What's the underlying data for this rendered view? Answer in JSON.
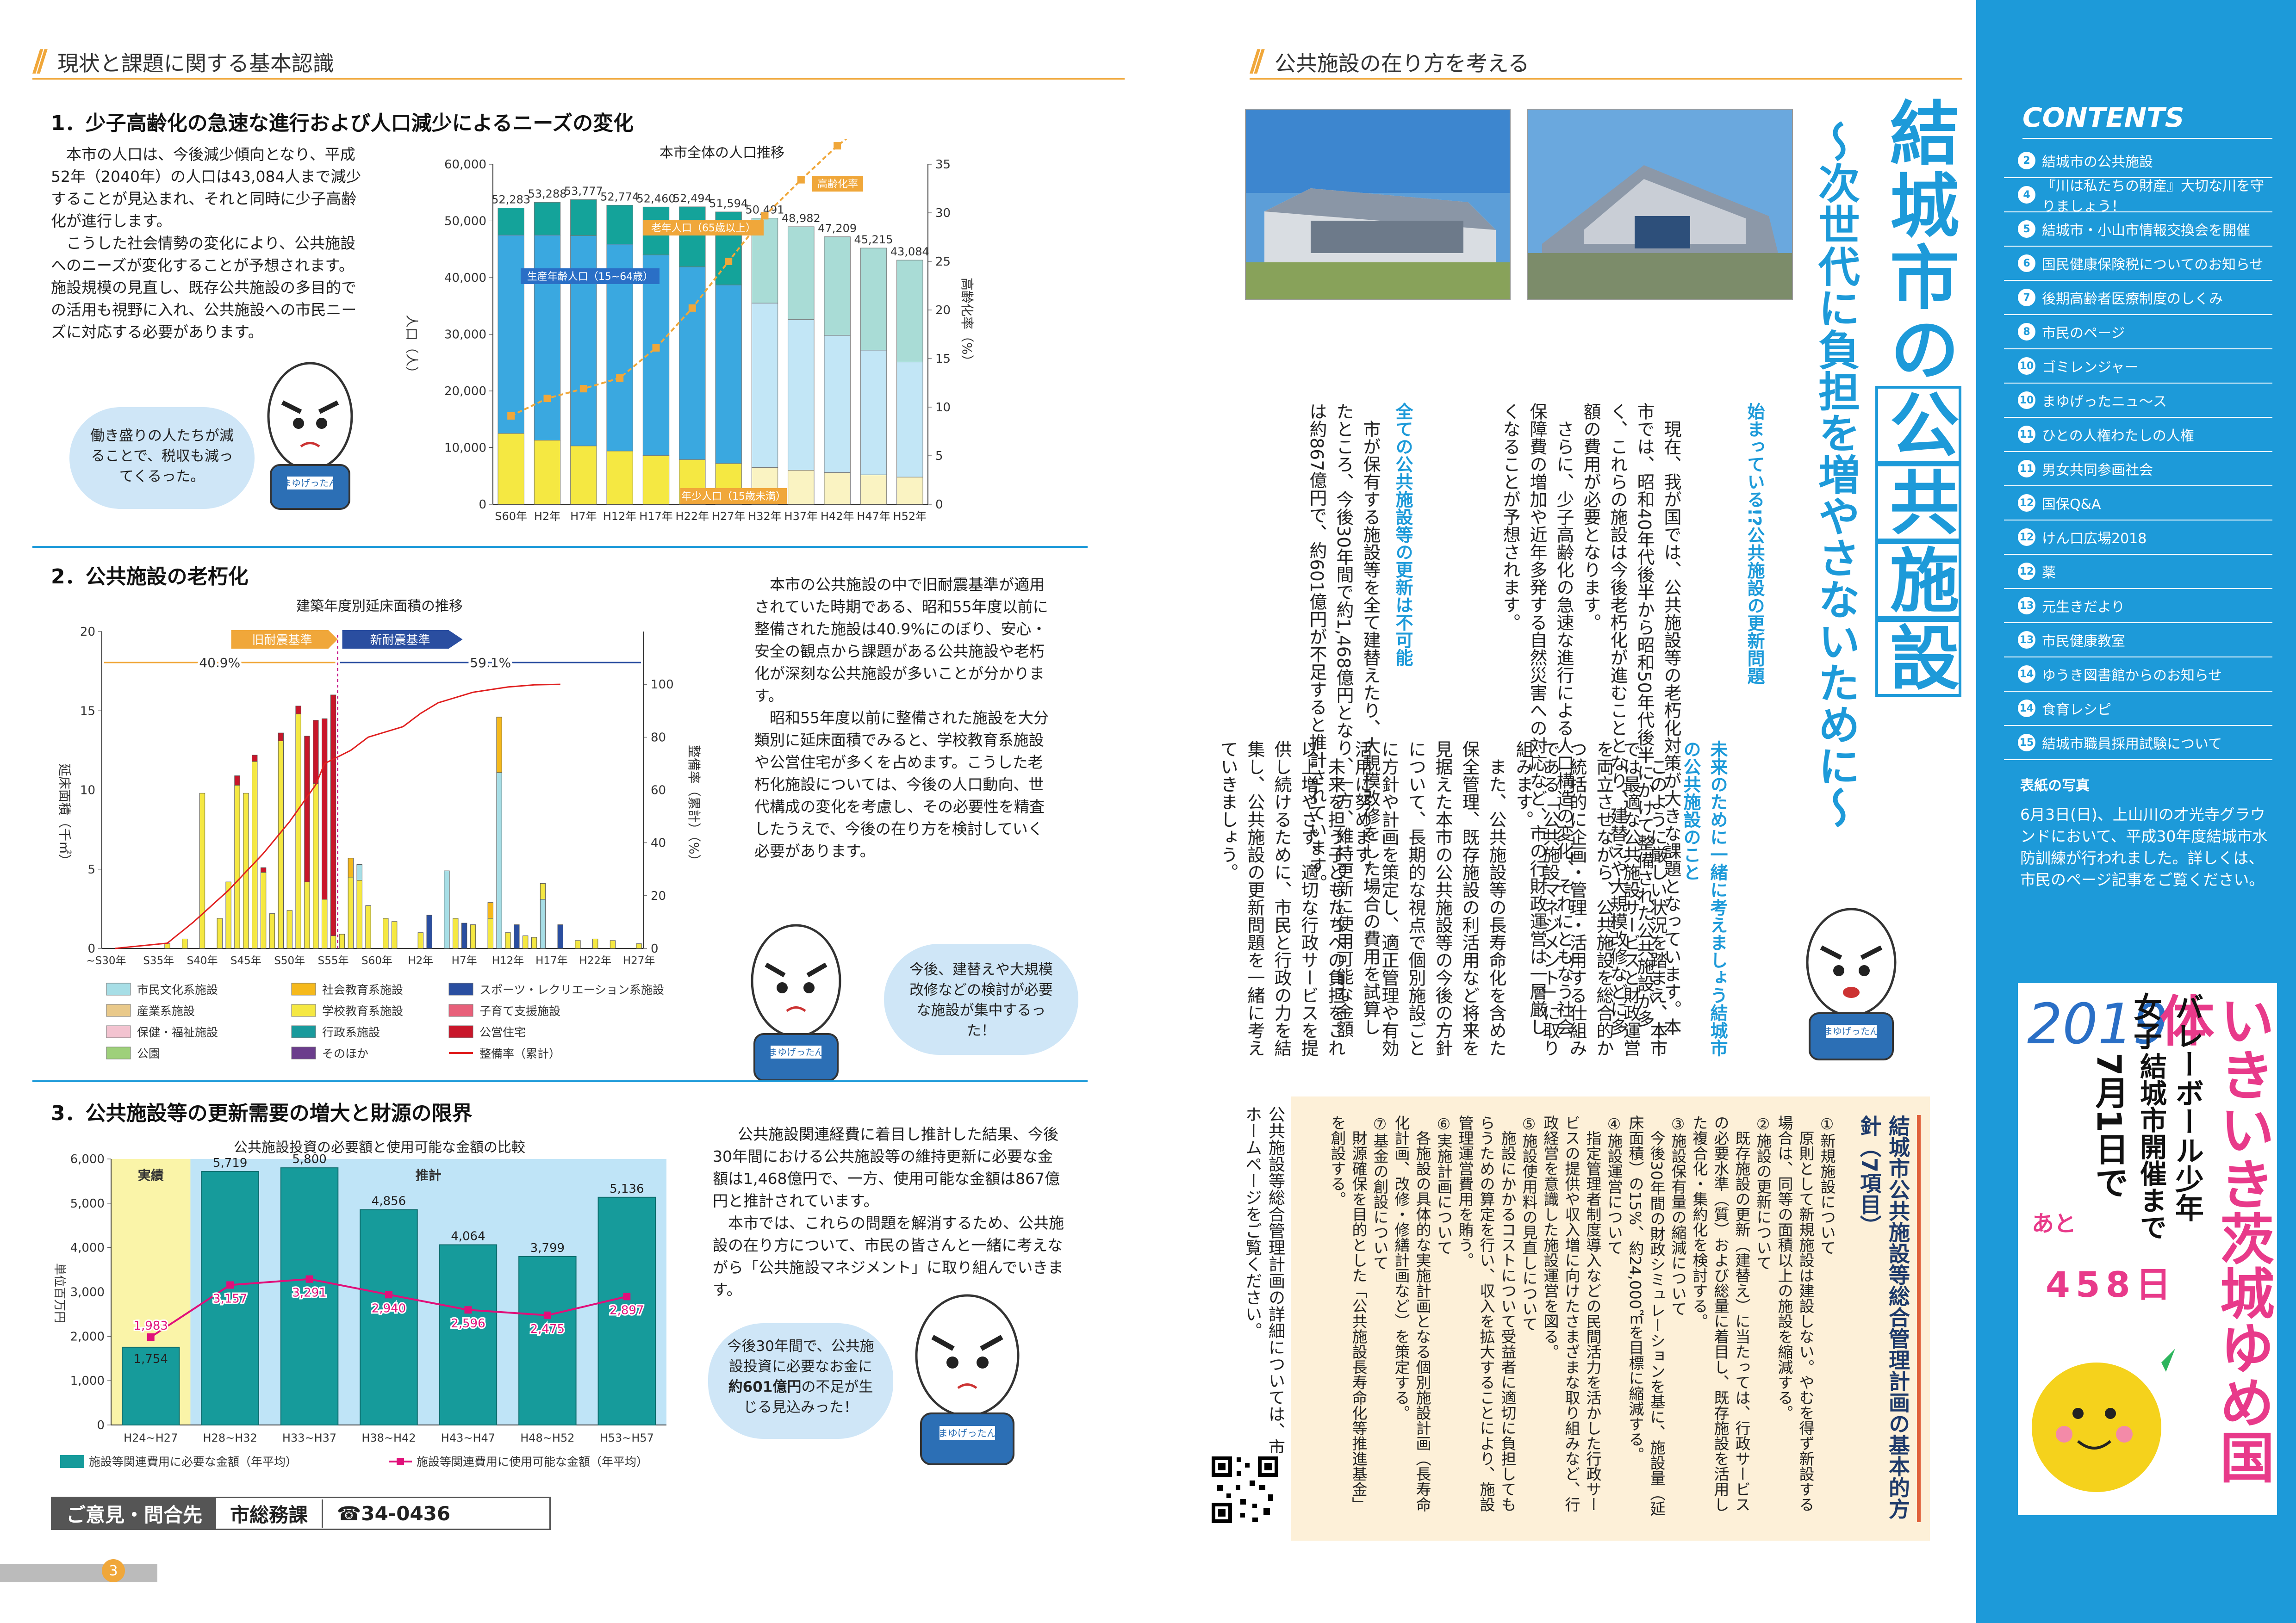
{
  "left_header": {
    "title": "現状と課題に関する基本認識"
  },
  "right_header": {
    "title": "公共施設の在り方を考える"
  },
  "s1": {
    "heading": "1．少子高齢化の急速な進行および人口減少によるニーズの変化",
    "body": "　本市の人口は、今後減少傾向となり、平成52年（2040年）の人口は43,084人まで減少することが見込まれ、それと同時に少子高齢化が進行します。\n　こうした社会情勢の変化により、公共施設へのニーズが変化することが予想されます。施設規模の見直し、既存公共施設の多目的での活用も視野に入れ、公共施設への市民ニーズに対応する必要があります。",
    "bubble": "働き盛りの人たちが減ることで、税収も減ってくるった。"
  },
  "s2": {
    "heading": "2．公共施設の老朽化",
    "body": "　本市の公共施設の中で旧耐震基準が適用されていた時期である、昭和55年度以前に整備された施設は40.9%にのぼり、安心・安全の観点から課題がある公共施設や老朽化が深刻な公共施設が多いことが分かります。\n　昭和55年度以前に整備された施設を大分類別に延床面積でみると、学校教育系施設や公営住宅が多くを占めます。こうした老朽化施設については、今後の人口動向、世代構成の変化を考慮し、その必要性を精査したうえで、今後の在り方を検討していく必要があります。",
    "bubble": "今後、建替えや大規模改修などの検討が必要な施設が集中するった！"
  },
  "s3": {
    "heading": "3．公共施設等の更新需要の増大と財源の限界",
    "body": "　公共施設関連経費に着目し推計した結果、今後30年間における公共施設等の維持更新に必要な金額は1,468億円で、一方、使用可能な金額は867億円と推計されています。\n　本市では、これらの問題を解消するため、公共施設の在り方について、市民の皆さんと一緒に考えながら「公共施設マネジメント」に取り組んでいきます。",
    "bubble_a": "今後30年間で、公共施設投資に必要なお金に",
    "bubble_b": "約601億円",
    "bubble_c": "の不足が生じる見込みった！"
  },
  "contact": {
    "label": "ご意見・問合先",
    "dept": "市総務課",
    "phone": "☎34-0436"
  },
  "page_left": "3",
  "page_right": "2",
  "mascot": {
    "sash": "まゆげったん"
  },
  "chart1": {
    "title": "本市全体の人口推移",
    "chart_data": {
      "type": "bar",
      "categories": [
        "S60年",
        "H2年",
        "H7年",
        "H12年",
        "H17年",
        "H22年",
        "H27年",
        "H32年",
        "H37年",
        "H42年",
        "H47年",
        "H52年"
      ],
      "series": [
        {
          "name": "年少人口（15歳未満）",
          "values": [
            12500,
            11300,
            10300,
            9400,
            8600,
            7900,
            7200,
            6500,
            6000,
            5600,
            5200,
            4800
          ]
        },
        {
          "name": "生産年齢人口（15~64歳）",
          "values": [
            35000,
            36200,
            37100,
            36500,
            35400,
            34000,
            31500,
            29000,
            26600,
            24200,
            22000,
            20300
          ]
        },
        {
          "name": "老年人口（65歳以上）",
          "values": [
            4783,
            5788,
            6377,
            6874,
            8460,
            10594,
            12894,
            14991,
            16382,
            17409,
            18015,
            17984
          ]
        }
      ],
      "totals": [
        "52,283",
        "53,288",
        "53,777",
        "52,774",
        "52,460",
        "52,494",
        "51,594",
        "50,491",
        "48,982",
        "47,209",
        "45,215",
        "43,084"
      ],
      "aging_rate": {
        "name": "高齢化率",
        "values": [
          9.1,
          10.9,
          11.9,
          13.0,
          16.1,
          20.2,
          25.0,
          29.7,
          33.4,
          36.9,
          39.8,
          41.7
        ]
      },
      "ylabel": "人口（人）",
      "y2label": "高齢化率（%）",
      "ylim": [
        0,
        60000
      ],
      "y2lim": [
        0,
        35
      ],
      "yticks": [
        "0",
        "10,000",
        "20,000",
        "30,000",
        "40,000",
        "50,000",
        "60,000"
      ],
      "y2ticks": [
        "0",
        "5",
        "10",
        "15",
        "20",
        "25",
        "30",
        "35"
      ]
    }
  },
  "chart2": {
    "title": "建築年度別延床面積の推移",
    "old_label": "旧耐震基準",
    "new_label": "新耐震基準",
    "old_pct": "40.9%",
    "new_pct": "59.1%",
    "chart_data": {
      "type": "bar",
      "ylabel": "延床面積（千㎡）",
      "y2label": "整備率（累計）（%）",
      "ylim": [
        0,
        20
      ],
      "y2lim": [
        0,
        120
      ],
      "xticks": [
        "~S30年",
        "S35年",
        "S40年",
        "S45年",
        "S50年",
        "S55年",
        "S60年",
        "H2年",
        "H7年",
        "H12年",
        "H17年",
        "H22年",
        "H27年"
      ],
      "yticks": [
        "0",
        "5",
        "10",
        "15",
        "20"
      ],
      "y2ticks": [
        "0",
        "20",
        "40",
        "60",
        "80",
        "100"
      ],
      "bars": [
        {
          "year": "S36",
          "values": {
            "学校教育系施設": 0.3
          }
        },
        {
          "year": "S38",
          "values": {
            "学校教育系施設": 0.6
          }
        },
        {
          "year": "S40",
          "values": {
            "学校教育系施設": 9.8
          }
        },
        {
          "year": "S42",
          "values": {
            "学校教育系施設": 1.9
          }
        },
        {
          "year": "S43",
          "values": {
            "学校教育系施設": 4.2
          }
        },
        {
          "year": "S44",
          "values": {
            "学校教育系施設": 10.3,
            "公営住宅": 0.6
          }
        },
        {
          "year": "S45",
          "values": {
            "学校教育系施設": 9.8
          }
        },
        {
          "year": "S46",
          "values": {
            "学校教育系施設": 11.8,
            "公営住宅": 0.4
          }
        },
        {
          "year": "S47",
          "values": {
            "学校教育系施設": 4.8,
            "公営住宅": 0.3
          }
        },
        {
          "year": "S48",
          "values": {
            "学校教育系施設": 2.2
          }
        },
        {
          "year": "S49",
          "values": {
            "学校教育系施設": 13.1,
            "公営住宅": 0.5
          }
        },
        {
          "year": "S50",
          "values": {
            "学校教育系施設": 2.4
          }
        },
        {
          "year": "S51",
          "values": {
            "学校教育系施設": 14.8,
            "公営住宅": 0.5
          }
        },
        {
          "year": "S52",
          "values": {
            "学校教育系施設": 4.2,
            "公営住宅": 9.2
          }
        },
        {
          "year": "S53",
          "values": {
            "学校教育系施設": 10.4,
            "公営住宅": 4.0
          }
        },
        {
          "year": "S54",
          "values": {
            "学校教育系施設": 3.1,
            "公営住宅": 11.4
          }
        },
        {
          "year": "S55",
          "values": {
            "学校教育系施設": 0.8,
            "公営住宅": 15.2
          }
        },
        {
          "year": "S56",
          "values": {
            "学校教育系施設": 0.9
          }
        },
        {
          "year": "S57",
          "values": {
            "学校教育系施設": 4.5,
            "社会教育系施設": 1.2
          }
        },
        {
          "year": "S58",
          "values": {
            "学校教育系施設": 4.3,
            "市民文化系施設": 1.0
          }
        },
        {
          "year": "S59",
          "values": {
            "学校教育系施設": 2.7
          }
        },
        {
          "year": "S61",
          "values": {
            "学校教育系施設": 1.9
          }
        },
        {
          "year": "S62",
          "values": {
            "学校教育系施設": 1.7
          }
        },
        {
          "year": "H2",
          "values": {
            "学校教育系施設": 1.0
          }
        },
        {
          "year": "H3",
          "values": {
            "スポーツ・レクリエーション系施設": 2.1
          }
        },
        {
          "year": "H5",
          "values": {
            "市民文化系施設": 4.9
          }
        },
        {
          "year": "H6",
          "values": {
            "学校教育系施設": 1.9
          }
        },
        {
          "year": "H7",
          "values": {
            "スポーツ・レクリエーション系施設": 1.6
          }
        },
        {
          "year": "H8",
          "values": {
            "学校教育系施設": 1.5
          }
        },
        {
          "year": "H10",
          "values": {
            "学校教育系施設": 1.9,
            "社会教育系施設": 1.0
          }
        },
        {
          "year": "H11",
          "values": {
            "市民文化系施設": 11.1,
            "社会教育系施設": 3.5
          }
        },
        {
          "year": "H12",
          "values": {
            "学校教育系施設": 1.0
          }
        },
        {
          "year": "H13",
          "values": {
            "スポーツ・レクリエーション系施設": 1.5
          }
        },
        {
          "year": "H14",
          "values": {
            "学校教育系施設": 0.8
          }
        },
        {
          "year": "H15",
          "values": {
            "学校教育系施設": 0.7
          }
        },
        {
          "year": "H16",
          "values": {
            "市民文化系施設": 3.1,
            "学校教育系施設": 1.0
          }
        },
        {
          "year": "H18",
          "values": {
            "スポーツ・レクリエーション系施設": 1.5
          }
        },
        {
          "year": "H20",
          "values": {
            "学校教育系施設": 0.5
          }
        },
        {
          "year": "H22",
          "values": {
            "学校教育系施設": 0.6
          }
        },
        {
          "year": "H24",
          "values": {
            "学校教育系施設": 0.5
          }
        },
        {
          "year": "H27",
          "values": {
            "学校教育系施設": 0.3
          }
        }
      ],
      "cumulative": [
        [
          1,
          0
        ],
        [
          7,
          2
        ],
        [
          10,
          10
        ],
        [
          14,
          22
        ],
        [
          18,
          36
        ],
        [
          21,
          48
        ],
        [
          24,
          62
        ],
        [
          25,
          70
        ],
        [
          28,
          75
        ],
        [
          30,
          80
        ],
        [
          34,
          84
        ],
        [
          36,
          89
        ],
        [
          38,
          93
        ],
        [
          42,
          97
        ],
        [
          46,
          99
        ],
        [
          49,
          99.8
        ],
        [
          52,
          100
        ]
      ],
      "legend": [
        "市民文化系施設",
        "社会教育系施設",
        "スポーツ・レクリエーション系施設",
        "産業系施設",
        "学校教育系施設",
        "子育て支援施設",
        "保健・福祉施設",
        "行政系施設",
        "公営住宅",
        "公園",
        "そのほか",
        "整備率（累計）"
      ],
      "legend_colors": [
        "#a7dee6",
        "#f5b91c",
        "#2a4ea0",
        "#e9c98a",
        "#f5e842",
        "#e8607a",
        "#f3c3d0",
        "#199a9c",
        "#c8162a",
        "#9ed07a",
        "#6b3d8c",
        "#e02020"
      ]
    }
  },
  "chart3": {
    "title": "公共施設投資の必要額と使用可能な金額の比較",
    "actual_label": "実績",
    "forecast_label": "推計",
    "chart_data": {
      "type": "bar",
      "categories": [
        "H24~H27",
        "H28~H32",
        "H33~H37",
        "H38~H42",
        "H43~H47",
        "H48~H52",
        "H53~H57"
      ],
      "series": [
        {
          "name": "施設等関連費用に必要な金額（年平均）",
          "values": [
            1754,
            5719,
            5800,
            4856,
            4064,
            3799,
            5136
          ],
          "labels": [
            "1,754",
            "5,719",
            "5,800",
            "4,856",
            "4,064",
            "3,799",
            "5,136"
          ]
        },
        {
          "name": "施設等関連費用に使用可能な金額（年平均）",
          "values": [
            1983,
            3157,
            3291,
            2940,
            2596,
            2475,
            2897
          ],
          "labels": [
            "1,983",
            "3,157",
            "3,291",
            "2,940",
            "2,596",
            "2,475",
            "2,897"
          ]
        }
      ],
      "ylabel": "単位百万円",
      "ylim": [
        0,
        6000
      ],
      "yticks": [
        "0",
        "1,000",
        "2,000",
        "3,000",
        "4,000",
        "5,000",
        "6,000"
      ]
    }
  },
  "right": {
    "main_title": [
      "結城市の",
      "公",
      "共",
      "施",
      "設"
    ],
    "subtitle": "〜次世代に負担を増やさないために〜",
    "p1_head": "始まっている!?公共施設の更新問題",
    "p1_body": "　現在、我が国では、公共施設等の老朽化対策が大きな課題となっています。本市では、昭和40年代後半から昭和50年代後半にかけて整備された公共施設が多く、これらの施設は今後老朽化が進むこととなり、建替えや大規模改修などに多額の費用が必要となります。\n　さらに、少子高齢化の急速な進行による人口構造の変化、それにともなう社会保障費の増加や近年多発する自然災害への対応など、市の行財政運営は一層厳しくなることが予想されます。",
    "p2_head": "全ての公共施設等の更新は不可能",
    "p2_body": "　市が保有する施設等を全て建替えたり、大規模改修をした場合の費用を試算したところ、今後30年間で約1,468億円となり、一方、維持更新に使用可能な金額は約867億円で、約601億円が不足すると推計されています。",
    "p3_head": "未来のために一緒に考えましょう結城市の公共施設のこと",
    "p3_body": "　このように厳しい状況を踏まえ、本市では最適な公共施設サービスと財政運営を両立させながら、公共施設を総合的かつ統括的に企画・管理・活用する仕組みである「公共施設マネジメント」に取り組みます。\n　また、公共施設等の長寿命化を含めた保全管理、既存施設の利活用など将来を見据えた本市の公共施設等の今後の方針について、長期的な視点で個別施設ごとに方針や計画を策定し、適正管理や有効活用に努めます。\n　未来を担う子どもたちへの負担をこれ以上増やさず、適切な行政サービスを提供し続けるために、市民と行政の力を結集し、公共施設の更新問題を一緒に考えていきましょう。",
    "policy_title": "結城市公共施設等総合管理計画の基本的方針（7項目）",
    "policy_body": "①新規施設について\n　原則として新規施設は建設しない。やむを得ず新設する場合は、同等の面積以上の施設を縮減する。\n②施設の更新について\n　既存施設の更新（建替え）に当たっては、行政サービスの必要水準（質）および総量に着目し、既存施設を活用した複合化・集約化を検討する。\n③施設保有量の縮減について\n　今後30年間の財政シミュレーションを基に、施設量（延床面積）の15%、約24,000㎡を目標に縮減する。\n④施設運営について\n　指定管理者制度導入などの民間活力を活かした行政サービスの提供や収入増に向けたさまざまな取り組みなど、行政経営を意識した施設運営を図る。\n⑤施設使用料の見直しについて\n　施設にかかるコストについて受益者に適切に負担してもらうための算定を行い、収入を拡大することにより、施設管理運営費用を賄う。\n⑥実施計画について\n　各施設の具体的な実施計画となる個別施設計画（長寿命化計画、改修・修繕計画など）を策定する。\n⑦基金の創設について\n　財源確保を目的とした「公共施設長寿命化等推進基金」を創設する。",
    "note": "公共施設等総合管理計画の詳細については、市ホームページをご覧ください。"
  },
  "sidebar": {
    "contents_title": "CONTENTS",
    "items": [
      {
        "n": "2",
        "t": "結城市の公共施設"
      },
      {
        "n": "4",
        "t": "『川は私たちの財産』大切な川を守りましょう！"
      },
      {
        "n": "5",
        "t": "結城市・小山市情報交換会を開催"
      },
      {
        "n": "6",
        "t": "国民健康保険税についてのお知らせ"
      },
      {
        "n": "7",
        "t": "後期高齢者医療制度のしくみ"
      },
      {
        "n": "8",
        "t": "市民のページ"
      },
      {
        "n": "10",
        "t": "ゴミレンジャー"
      },
      {
        "n": "10",
        "t": "まゆげったニュ～ス"
      },
      {
        "n": "11",
        "t": "ひとの人権わたしの人権"
      },
      {
        "n": "11",
        "t": "男女共同参画社会"
      },
      {
        "n": "12",
        "t": "国保Q&A"
      },
      {
        "n": "12",
        "t": "けん口広場2018"
      },
      {
        "n": "12",
        "t": "薬"
      },
      {
        "n": "13",
        "t": "元生きだより"
      },
      {
        "n": "13",
        "t": "市民健康教室"
      },
      {
        "n": "14",
        "t": "ゆうき図書館からのお知らせ"
      },
      {
        "n": "14",
        "t": "食育レシピ"
      },
      {
        "n": "15",
        "t": "結城市職員採用試験について"
      }
    ],
    "cover_title": "表紙の写真",
    "cover_text": "6月3日(日)、上山川の才光寺グラウンドにおいて、平成30年度結城市水防訓練が行われました。詳しくは、市民のページ記事をご覧ください。",
    "kokutai_year": "2019",
    "kokutai_name": "いきいき茨城ゆめ国体",
    "kokutai_sport": "バレーボール少年女子",
    "kokutai_city": "結城市開催まで",
    "kokutai_date": "7月1日で",
    "kokutai_ato": "あと",
    "kokutai_days": "458日"
  }
}
